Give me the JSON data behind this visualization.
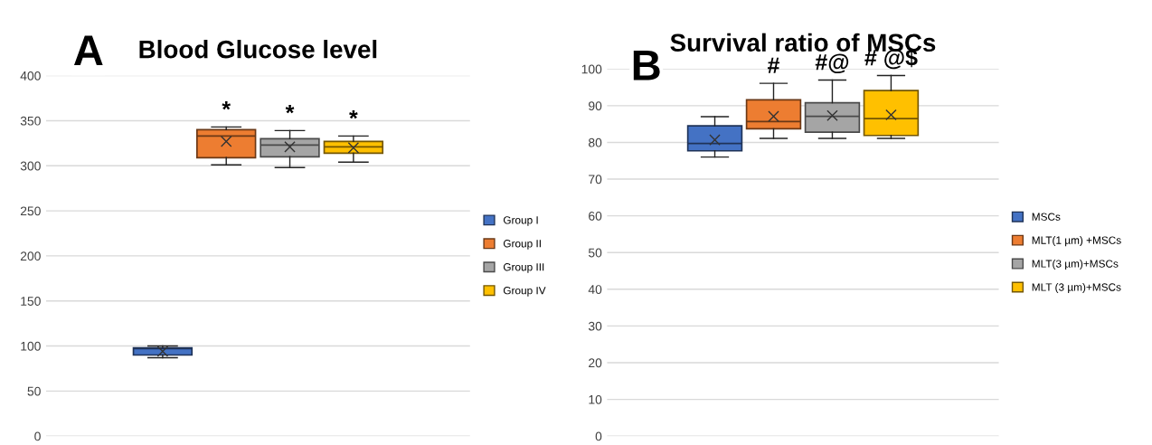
{
  "chart_data": [
    {
      "type": "box",
      "title": "Blood Glucose level",
      "categories": [
        null
      ],
      "ylim": [
        0,
        400
      ],
      "yticks": [
        0,
        50,
        100,
        150,
        200,
        250,
        300,
        350,
        400
      ],
      "grid": "y",
      "legend": "right",
      "marker": "cross",
      "annotations": [
        "A",
        "*",
        "*",
        "*"
      ],
      "series": [
        {
          "name": "Group I",
          "color": "#4472c4",
          "boxes": [
            {
              "low": 87,
              "q1": 90,
              "median": 97,
              "q3": 98,
              "high": 100,
              "mean": 94
            }
          ]
        },
        {
          "name": "Group II",
          "color": "#ed7d31",
          "boxes": [
            {
              "low": 301,
              "q1": 309,
              "median": 333,
              "q3": 340,
              "high": 343,
              "mean": 327
            }
          ]
        },
        {
          "name": "Group III",
          "color": "#a5a5a5",
          "boxes": [
            {
              "low": 298,
              "q1": 310,
              "median": 323,
              "q3": 330,
              "high": 339,
              "mean": 321
            }
          ]
        },
        {
          "name": "Group IV",
          "color": "#ffc000",
          "boxes": [
            {
              "low": 304,
              "q1": 314,
              "median": 321,
              "q3": 327,
              "high": 333,
              "mean": 320
            }
          ]
        }
      ]
    },
    {
      "type": "box",
      "title": "Survival ratio of MSCs",
      "categories": [
        null
      ],
      "ylim": [
        0,
        100
      ],
      "yticks": [
        0,
        10,
        20,
        30,
        40,
        50,
        60,
        70,
        80,
        90,
        100
      ],
      "grid": "y",
      "legend": "right",
      "marker": "cross",
      "annotations": [
        "B",
        "#",
        "#@",
        "# @$"
      ],
      "series": [
        {
          "name": "MSCs",
          "color": "#4472c4",
          "boxes": [
            {
              "low": 76,
              "q1": 77.7,
              "median": 79.7,
              "q3": 84.5,
              "high": 87,
              "mean": 80.7
            }
          ]
        },
        {
          "name": "MLT(1 µm) +MSCs",
          "color": "#ed7d31",
          "boxes": [
            {
              "low": 81.1,
              "q1": 83.7,
              "median": 85.7,
              "q3": 91.6,
              "high": 96.1,
              "mean": 87.1
            }
          ]
        },
        {
          "name": "MLT(3 µm)+MSCs",
          "color": "#a5a5a5",
          "boxes": [
            {
              "low": 81.1,
              "q1": 82.8,
              "median": 87.1,
              "q3": 90.8,
              "high": 97,
              "mean": 87.3
            }
          ]
        },
        {
          "name": "MLT (3 µm)+MSCs",
          "color": "#ffc000",
          "boxes": [
            {
              "low": 81.1,
              "q1": 81.9,
              "median": 86.5,
              "q3": 94.1,
              "high": 98.2,
              "mean": 87.5
            }
          ]
        }
      ]
    }
  ]
}
